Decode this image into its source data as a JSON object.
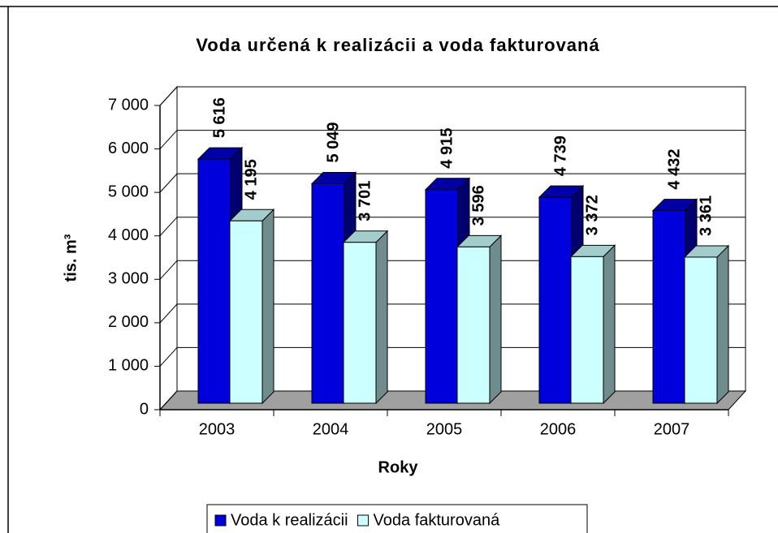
{
  "chart_data": {
    "type": "bar3d",
    "title": "Voda určená k realizácii a voda fakturovaná",
    "x_label": "Roky",
    "y_label": "tis. m³",
    "categories": [
      "2003",
      "2004",
      "2005",
      "2006",
      "2007"
    ],
    "series": [
      {
        "name": "Voda k realizácii",
        "color": "#0000dd",
        "values": [
          5616,
          5049,
          4915,
          4739,
          4432
        ],
        "value_labels": [
          "5 616",
          "5 049",
          "4 915",
          "4 739",
          "4 432"
        ]
      },
      {
        "name": "Voda fakturovaná",
        "color": "#ccffff",
        "values": [
          4195,
          3701,
          3596,
          3372,
          3361
        ],
        "value_labels": [
          "4 195",
          "3 701",
          "3 596",
          "3 372",
          "3 361"
        ]
      }
    ],
    "ylim": [
      0,
      7000
    ],
    "yticks": [
      0,
      {
        "value": 1000,
        "label": "1 000"
      },
      {
        "value": 2000,
        "label": "2 000"
      },
      {
        "value": 3000,
        "label": "3 000"
      },
      {
        "value": 4000,
        "label": "4 000"
      },
      {
        "value": 5000,
        "label": "5 000"
      },
      {
        "value": 6000,
        "label": "6 000"
      },
      {
        "value": 7000,
        "label": "7 000"
      }
    ],
    "grid": true,
    "legend": "bottom"
  }
}
